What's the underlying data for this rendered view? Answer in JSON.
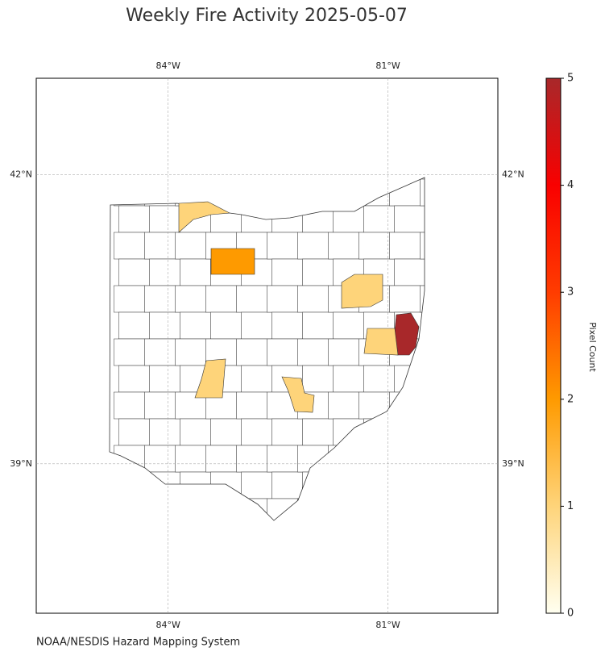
{
  "chart_data": {
    "type": "choropleth",
    "title": "Weekly Fire Activity 2025-05-07",
    "source": "NOAA/NESDIS Hazard Mapping System",
    "xlim": [
      -85.8,
      -79.5
    ],
    "ylim": [
      37.45,
      43.0
    ],
    "xticks": [
      {
        "value": -84,
        "label": "84°W"
      },
      {
        "value": -81,
        "label": "81°W"
      }
    ],
    "yticks": [
      {
        "value": 42,
        "label": "42°N"
      },
      {
        "value": 39,
        "label": "39°N"
      }
    ],
    "grid": true,
    "values": [
      1,
      2,
      1,
      5,
      1,
      1,
      1
    ],
    "colorbar": {
      "label": "Pixel Count",
      "clim": [
        0,
        5
      ],
      "ticks": [
        0,
        1,
        2,
        3,
        4,
        5
      ],
      "cmap": [
        "#fffff0",
        "#fed47a",
        "#fe9a00",
        "#ff3c00",
        "#f90000",
        "#a8282a"
      ]
    }
  }
}
